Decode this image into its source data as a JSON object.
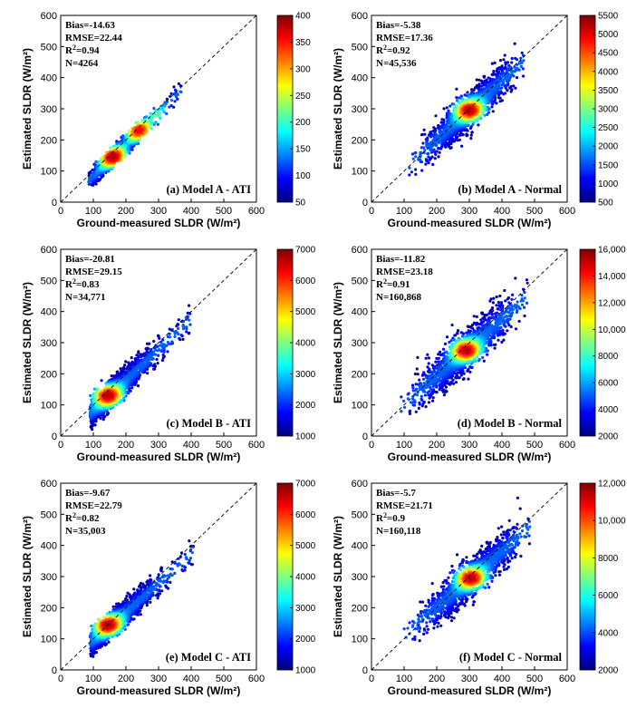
{
  "chart_data": [
    {
      "type": "scatter",
      "subtype": "density-scatter",
      "title": "(a) Model A - ATI",
      "xlabel": "Ground-measured SLDR (W/m²)",
      "ylabel": "Estimated SLDR (W/m²)",
      "xlim": [
        0,
        600
      ],
      "ylim": [
        0,
        600
      ],
      "xticks": [
        0,
        100,
        200,
        300,
        400,
        500,
        600
      ],
      "yticks": [
        0,
        100,
        200,
        300,
        400,
        500,
        600
      ],
      "stats": {
        "bias": "Bias=-14.63",
        "rmse": "RMSE=22.44",
        "r2": "=0.94",
        "n": "N=4264"
      },
      "colorbar": {
        "min": 50,
        "max": 400,
        "ticks": [
          50,
          100,
          150,
          200,
          250,
          300,
          350,
          400
        ],
        "labels": [
          "50",
          "100",
          "150",
          "200",
          "250",
          "300",
          "350",
          "400"
        ]
      },
      "cloud": {
        "x_range": [
          85,
          370
        ],
        "center": [
          175,
          160
        ],
        "slope": 1.02,
        "spread": 14
      },
      "hotspots": [
        {
          "x": 160,
          "y": 145,
          "level": 1.0
        },
        {
          "x": 240,
          "y": 230,
          "level": 0.9
        },
        {
          "x": 290,
          "y": 275,
          "level": 0.35
        }
      ]
    },
    {
      "type": "scatter",
      "subtype": "density-scatter",
      "title": "(b) Model A - Normal",
      "xlabel": "Ground-measured SLDR (W/m²)",
      "ylabel": "Estimated SLDR (W/m²)",
      "xlim": [
        0,
        600
      ],
      "ylim": [
        0,
        600
      ],
      "xticks": [
        0,
        100,
        200,
        300,
        400,
        500,
        600
      ],
      "yticks": [
        0,
        100,
        200,
        300,
        400,
        500,
        600
      ],
      "stats": {
        "bias": "Bias=-5.38",
        "rmse": "RMSE=17.36",
        "r2": "=0.92",
        "n": "N=45,536"
      },
      "colorbar": {
        "min": 500,
        "max": 5500,
        "ticks": [
          500,
          1000,
          1500,
          2000,
          2500,
          3000,
          3500,
          4000,
          4500,
          5000,
          5500
        ],
        "labels": [
          "500",
          "1000",
          "1500",
          "2000",
          "2500",
          "3000",
          "3500",
          "4000",
          "4500",
          "5000",
          "5500"
        ]
      },
      "cloud": {
        "x_range": [
          110,
          470
        ],
        "center": [
          300,
          295
        ],
        "slope": 0.95,
        "spread": 28
      },
      "hotspots": [
        {
          "x": 300,
          "y": 295,
          "level": 1.0
        }
      ]
    },
    {
      "type": "scatter",
      "subtype": "density-scatter",
      "title": "(c) Model B - ATI",
      "xlabel": "Ground-measured SLDR (W/m²)",
      "ylabel": "Estimated SLDR (W/m²)",
      "xlim": [
        0,
        600
      ],
      "ylim": [
        0,
        600
      ],
      "xticks": [
        0,
        100,
        200,
        300,
        400,
        500,
        600
      ],
      "yticks": [
        0,
        100,
        200,
        300,
        400,
        500,
        600
      ],
      "stats": {
        "bias": "Bias=-20.81",
        "rmse": "RMSE=29.15",
        "r2": "=0.83",
        "n": "N=34,771"
      },
      "colorbar": {
        "min": 1000,
        "max": 7000,
        "ticks": [
          1000,
          2000,
          3000,
          4000,
          5000,
          6000,
          7000
        ],
        "labels": [
          "1000",
          "2000",
          "3000",
          "4000",
          "5000",
          "6000",
          "7000"
        ]
      },
      "cloud": {
        "x_range": [
          90,
          400
        ],
        "center": [
          150,
          130
        ],
        "slope": 0.98,
        "spread": 22
      },
      "hotspots": [
        {
          "x": 145,
          "y": 130,
          "level": 1.0
        }
      ]
    },
    {
      "type": "scatter",
      "subtype": "density-scatter",
      "title": "(d) Model B - Normal",
      "xlabel": "Ground-measured SLDR (W/m²)",
      "ylabel": "Estimated SLDR (W/m²)",
      "xlim": [
        0,
        600
      ],
      "ylim": [
        0,
        600
      ],
      "xticks": [
        0,
        100,
        200,
        300,
        400,
        500,
        600
      ],
      "yticks": [
        0,
        100,
        200,
        300,
        400,
        500,
        600
      ],
      "stats": {
        "bias": "Bias=-11.82",
        "rmse": "RMSE=23.18",
        "r2": "=0.91",
        "n": "N=160,868"
      },
      "colorbar": {
        "min": 2000,
        "max": 16000,
        "ticks": [
          2000,
          4000,
          6000,
          8000,
          10000,
          12000,
          14000,
          16000
        ],
        "labels": [
          "2000",
          "4000",
          "6000",
          "8000",
          "10,000",
          "12,000",
          "14,000",
          "16,000"
        ]
      },
      "cloud": {
        "x_range": [
          90,
          480
        ],
        "center": [
          290,
          275
        ],
        "slope": 0.92,
        "spread": 32
      },
      "hotspots": [
        {
          "x": 290,
          "y": 275,
          "level": 1.0
        }
      ]
    },
    {
      "type": "scatter",
      "subtype": "density-scatter",
      "title": "(e) Model C - ATI",
      "xlabel": "Ground-measured SLDR (W/m²)",
      "ylabel": "Estimated SLDR (W/m²)",
      "xlim": [
        0,
        600
      ],
      "ylim": [
        0,
        600
      ],
      "xticks": [
        0,
        100,
        200,
        300,
        400,
        500,
        600
      ],
      "yticks": [
        0,
        100,
        200,
        300,
        400,
        500,
        600
      ],
      "stats": {
        "bias": "Bias=-9.67",
        "rmse": "RMSE=22.79",
        "r2": "=0.82",
        "n": "N=35,003"
      },
      "colorbar": {
        "min": 1000,
        "max": 7000,
        "ticks": [
          1000,
          2000,
          3000,
          4000,
          5000,
          6000,
          7000
        ],
        "labels": [
          "1000",
          "2000",
          "3000",
          "4000",
          "5000",
          "6000",
          "7000"
        ]
      },
      "cloud": {
        "x_range": [
          90,
          410
        ],
        "center": [
          155,
          145
        ],
        "slope": 0.92,
        "spread": 20
      },
      "hotspots": [
        {
          "x": 145,
          "y": 145,
          "level": 1.0
        }
      ]
    },
    {
      "type": "scatter",
      "subtype": "density-scatter",
      "title": "(f) Model C - Normal",
      "xlabel": "Ground-measured SLDR (W/m²)",
      "ylabel": "Estimated SLDR (W/m²)",
      "xlim": [
        0,
        600
      ],
      "ylim": [
        0,
        600
      ],
      "xticks": [
        0,
        100,
        200,
        300,
        400,
        500,
        600
      ],
      "yticks": [
        0,
        100,
        200,
        300,
        400,
        500,
        600
      ],
      "stats": {
        "bias": "Bias=-5.7",
        "rmse": "RMSE=21.71",
        "r2": "=0.9",
        "n": "N=160,118"
      },
      "colorbar": {
        "min": 2000,
        "max": 12000,
        "ticks": [
          2000,
          4000,
          6000,
          8000,
          10000,
          12000
        ],
        "labels": [
          "2000",
          "4000",
          "6000",
          "8000",
          "10,000",
          "12,000"
        ]
      },
      "cloud": {
        "x_range": [
          100,
          490
        ],
        "center": [
          305,
          295
        ],
        "slope": 0.9,
        "spread": 30
      },
      "hotspots": [
        {
          "x": 305,
          "y": 295,
          "level": 1.0
        }
      ]
    }
  ],
  "r2_prefix": "R",
  "r2_sup": "2",
  "colormap": [
    "#00007f",
    "#0000ff",
    "#007fff",
    "#00ffff",
    "#7fff7f",
    "#ffff00",
    "#ff7f00",
    "#ff0000",
    "#7f0000"
  ]
}
